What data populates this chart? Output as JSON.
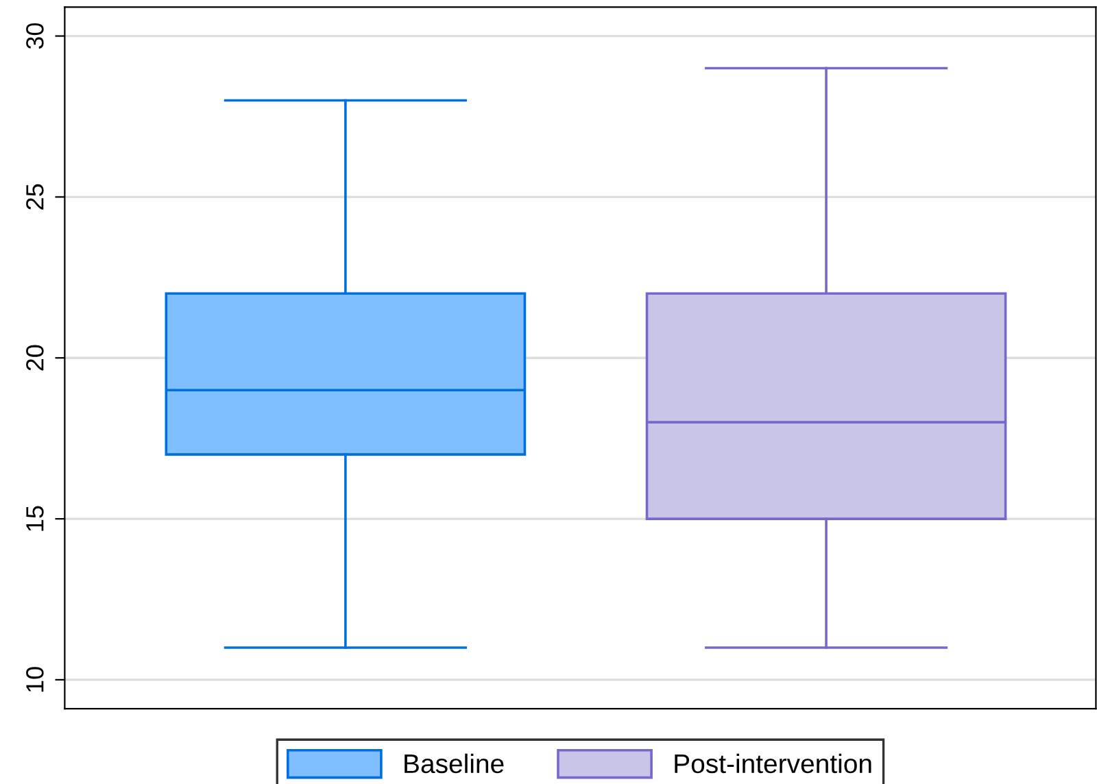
{
  "chart_data": {
    "type": "box",
    "categories": [
      null
    ],
    "series": [
      {
        "name": "Baseline",
        "color": "#80bfff",
        "boxes": [
          {
            "low": 11,
            "q1": 17,
            "median": 19,
            "q3": 22,
            "high": 28
          }
        ]
      },
      {
        "name": "Post-intervention",
        "color": "#c9c5e9",
        "boxes": [
          {
            "low": 11,
            "q1": 15,
            "median": 18,
            "q3": 22,
            "high": 29
          }
        ]
      }
    ],
    "ylim": [
      9.1,
      30.9
    ],
    "yticks": [
      10,
      15,
      20,
      25,
      30
    ],
    "grid": "y",
    "legend": "bottom",
    "tick_labels": "y"
  }
}
